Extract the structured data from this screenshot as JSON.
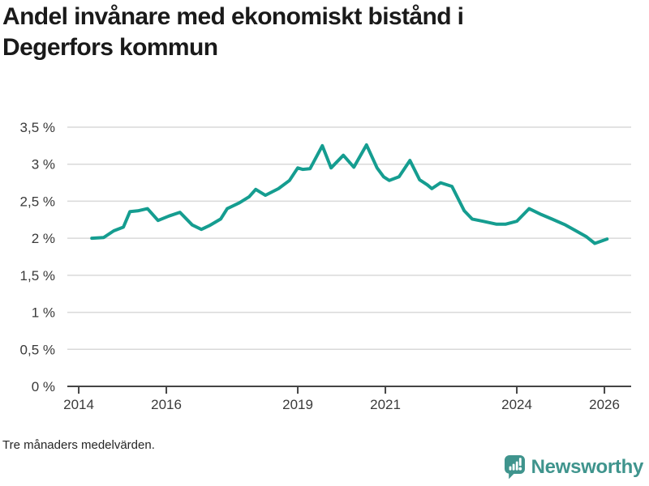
{
  "title_lines": [
    "Andel invånare med ekonomiskt bistånd i",
    "Degerfors kommun"
  ],
  "footnote": "Tre månaders medelvärden.",
  "branding": {
    "name": "Newsworthy",
    "color": "#3f948d",
    "icon": "newsworthy-speech-bubble-chart"
  },
  "colors": {
    "line": "#159d90",
    "grid": "#d9d9d9",
    "axis": "#444444",
    "tick_text": "#3a3a3a"
  },
  "chart_data": {
    "type": "line",
    "title": "Andel invånare med ekonomiskt bistånd i Degerfors kommun",
    "note": "Tre månaders medelvärden.",
    "xlabel": "",
    "ylabel": "",
    "grid": "horizontal",
    "legend": "none",
    "ylim": [
      0,
      3.5
    ],
    "xlim": [
      2013.74,
      2026.61
    ],
    "y_ticks": [
      {
        "value": 0,
        "label": "0 %"
      },
      {
        "value": 0.5,
        "label": "0,5 %"
      },
      {
        "value": 1,
        "label": "1 %"
      },
      {
        "value": 1.5,
        "label": "1,5 %"
      },
      {
        "value": 2,
        "label": "2 %"
      },
      {
        "value": 2.5,
        "label": "2,5 %"
      },
      {
        "value": 3,
        "label": "3 %"
      },
      {
        "value": 3.5,
        "label": "3,5 %"
      }
    ],
    "x_ticks": [
      {
        "value": 2014,
        "label": "2014"
      },
      {
        "value": 2016,
        "label": "2016"
      },
      {
        "value": 2019,
        "label": "2019"
      },
      {
        "value": 2021,
        "label": "2021"
      },
      {
        "value": 2024,
        "label": "2024"
      },
      {
        "value": 2026,
        "label": "2026"
      }
    ],
    "series": [
      {
        "name": "Andel invånare med ekonomiskt bistånd",
        "unit": "%",
        "points": [
          [
            2014.3,
            2.0
          ],
          [
            2014.57,
            2.01
          ],
          [
            2014.8,
            2.1
          ],
          [
            2015.02,
            2.15
          ],
          [
            2015.17,
            2.36
          ],
          [
            2015.35,
            2.37
          ],
          [
            2015.57,
            2.4
          ],
          [
            2015.81,
            2.24
          ],
          [
            2016.06,
            2.3
          ],
          [
            2016.31,
            2.35
          ],
          [
            2016.59,
            2.18
          ],
          [
            2016.8,
            2.12
          ],
          [
            2016.98,
            2.17
          ],
          [
            2017.24,
            2.26
          ],
          [
            2017.39,
            2.4
          ],
          [
            2017.67,
            2.48
          ],
          [
            2017.89,
            2.56
          ],
          [
            2018.04,
            2.66
          ],
          [
            2018.26,
            2.58
          ],
          [
            2018.56,
            2.67
          ],
          [
            2018.81,
            2.78
          ],
          [
            2019.0,
            2.95
          ],
          [
            2019.11,
            2.93
          ],
          [
            2019.28,
            2.94
          ],
          [
            2019.56,
            3.25
          ],
          [
            2019.76,
            2.95
          ],
          [
            2020.04,
            3.12
          ],
          [
            2020.28,
            2.96
          ],
          [
            2020.57,
            3.26
          ],
          [
            2020.81,
            2.95
          ],
          [
            2020.96,
            2.83
          ],
          [
            2021.09,
            2.78
          ],
          [
            2021.31,
            2.83
          ],
          [
            2021.56,
            3.05
          ],
          [
            2021.78,
            2.79
          ],
          [
            2021.96,
            2.72
          ],
          [
            2022.06,
            2.67
          ],
          [
            2022.26,
            2.75
          ],
          [
            2022.52,
            2.7
          ],
          [
            2022.8,
            2.37
          ],
          [
            2022.98,
            2.26
          ],
          [
            2023.22,
            2.23
          ],
          [
            2023.54,
            2.19
          ],
          [
            2023.74,
            2.19
          ],
          [
            2024.0,
            2.23
          ],
          [
            2024.28,
            2.4
          ],
          [
            2024.56,
            2.32
          ],
          [
            2024.8,
            2.26
          ],
          [
            2025.11,
            2.18
          ],
          [
            2025.35,
            2.1
          ],
          [
            2025.59,
            2.02
          ],
          [
            2025.78,
            1.93
          ],
          [
            2026.06,
            1.99
          ]
        ]
      }
    ]
  }
}
